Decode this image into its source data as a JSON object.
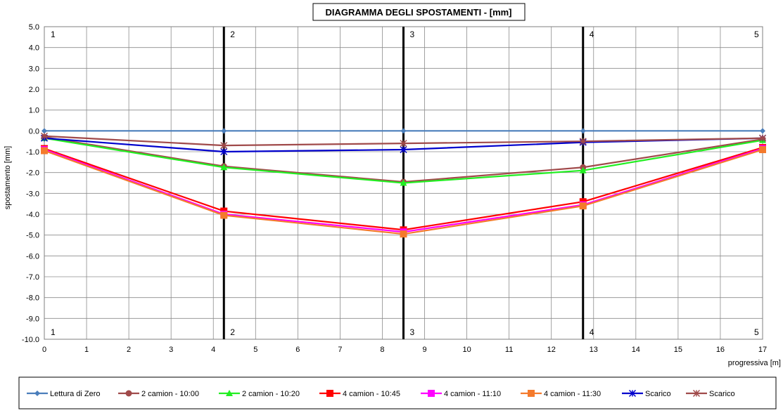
{
  "chart_data": {
    "type": "line",
    "title": "DIAGRAMMA DEGLI SPOSTAMENTI - [mm]",
    "xlabel": "progressiva  [m]",
    "ylabel": "spostamento [mm]",
    "xlim": [
      0,
      17
    ],
    "ylim": [
      -10,
      5
    ],
    "x_ticks": [
      "0",
      "1",
      "2",
      "3",
      "4",
      "5",
      "6",
      "7",
      "8",
      "9",
      "10",
      "11",
      "12",
      "13",
      "14",
      "15",
      "16",
      "17"
    ],
    "y_ticks": [
      "5.0",
      "4.0",
      "3.0",
      "2.0",
      "1.0",
      "0.0",
      "-1.0",
      "-2.0",
      "-3.0",
      "-4.0",
      "-5.0",
      "-6.0",
      "-7.0",
      "-8.0",
      "-9.0",
      "-10.0"
    ],
    "grid": true,
    "legend_position": "bottom",
    "x": [
      0,
      4.25,
      8.5,
      12.75,
      17
    ],
    "sections": [
      {
        "x": 0,
        "label": "1"
      },
      {
        "x": 4.25,
        "label": "2"
      },
      {
        "x": 8.5,
        "label": "3"
      },
      {
        "x": 12.75,
        "label": "4"
      },
      {
        "x": 17,
        "label": "5"
      }
    ],
    "series": [
      {
        "name": "Lettura di Zero",
        "color": "#4A7EBB",
        "marker": "diamond",
        "values": [
          0,
          0,
          0,
          0,
          0
        ]
      },
      {
        "name": "2 camion - 10:00",
        "color": "#A04A4A",
        "marker": "circle",
        "values": [
          -0.3,
          -1.7,
          -2.45,
          -1.75,
          -0.4
        ]
      },
      {
        "name": "2 camion - 10:20",
        "color": "#22EE22",
        "marker": "triangle",
        "values": [
          -0.35,
          -1.75,
          -2.5,
          -1.9,
          -0.45
        ]
      },
      {
        "name": "4 camion - 10:45",
        "color": "#FF0000",
        "marker": "square",
        "values": [
          -0.85,
          -3.85,
          -4.75,
          -3.4,
          -0.8
        ]
      },
      {
        "name": "4 camion - 11:10",
        "color": "#FF00FF",
        "marker": "square",
        "values": [
          -0.9,
          -4.0,
          -4.85,
          -3.55,
          -0.85
        ]
      },
      {
        "name": "4 camion - 11:30",
        "color": "#F47A2C",
        "marker": "square",
        "values": [
          -0.95,
          -4.05,
          -4.95,
          -3.6,
          -0.9
        ]
      },
      {
        "name": "Scarico",
        "color": "#0000CC",
        "marker": "star",
        "values": [
          -0.35,
          -1.0,
          -0.9,
          -0.55,
          -0.35
        ]
      },
      {
        "name": "Scarico",
        "color": "#A04A4A",
        "marker": "star",
        "values": [
          -0.25,
          -0.7,
          -0.6,
          -0.5,
          -0.35
        ]
      }
    ]
  }
}
